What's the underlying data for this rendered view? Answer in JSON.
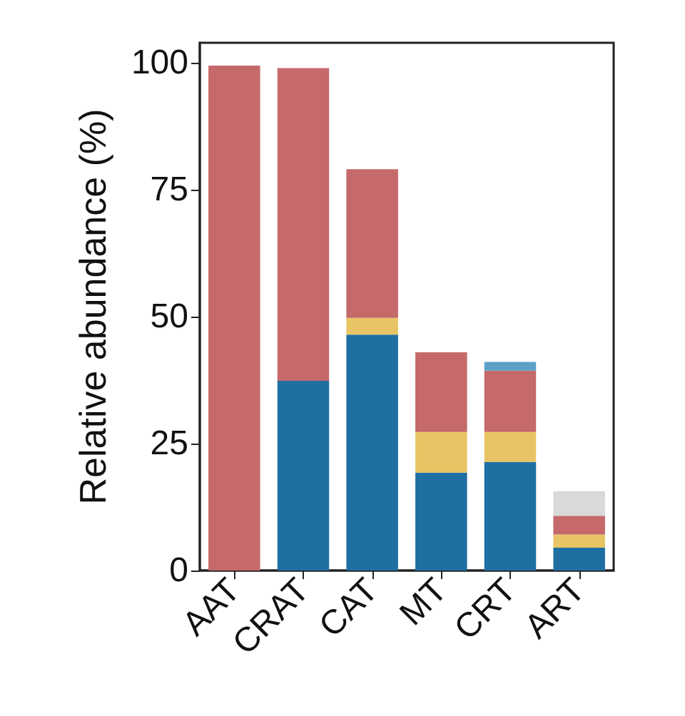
{
  "chart_data": {
    "type": "bar",
    "stacked": true,
    "ylabel": "Relative abundance (%)",
    "categories": [
      "AAT",
      "CRAT",
      "CAT",
      "MT",
      "CRT",
      "ART"
    ],
    "series": [
      {
        "color": "#1f6fa3",
        "values": [
          null,
          37.4,
          46.5,
          19.3,
          21.4,
          4.5
        ]
      },
      {
        "color": "#e8c564",
        "values": [
          null,
          null,
          3.3,
          8,
          5.9,
          2.6
        ]
      },
      {
        "color": "#c5696a",
        "values": [
          99.5,
          61.6,
          29.3,
          15.7,
          12.1,
          3.7
        ]
      },
      {
        "color": "#5ca0c8",
        "values": [
          null,
          null,
          null,
          null,
          1.7,
          null
        ]
      },
      {
        "color": "#d9d9d9",
        "values": [
          null,
          null,
          null,
          null,
          null,
          4.8
        ]
      }
    ],
    "ylim": [
      0,
      104
    ],
    "yticks": [
      0,
      25,
      50,
      75,
      100
    ],
    "grid": false
  }
}
